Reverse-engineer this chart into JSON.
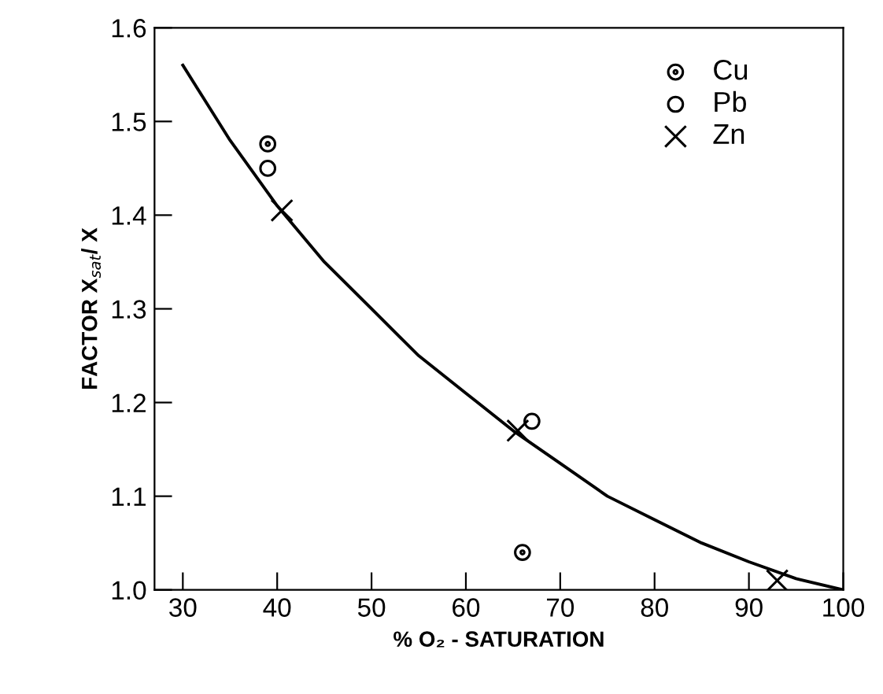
{
  "chart_data": {
    "type": "scatter",
    "xlabel": "% O₂ - SATURATION",
    "ylabel": "FACTOR X$_{sat}$/ X",
    "xlim": [
      27,
      100
    ],
    "ylim": [
      1.0,
      1.6
    ],
    "xticks": [
      30,
      40,
      50,
      60,
      70,
      80,
      90,
      100
    ],
    "yticks": [
      {
        "value": 1,
        "label": "1.0"
      },
      1.1,
      1.2,
      1.3,
      1.4,
      1.5,
      1.6
    ],
    "grid": false,
    "legend": "top right",
    "series": [
      {
        "name": "Cu",
        "color": "#000000",
        "marker": "circle_dot",
        "x": [
          39,
          66
        ],
        "values": [
          1.476,
          1.04
        ]
      },
      {
        "name": "Pb",
        "color": "#000000",
        "marker": "circle",
        "x": [
          39,
          67
        ],
        "values": [
          1.45,
          1.18
        ]
      },
      {
        "name": "Zn",
        "color": "#000000",
        "marker": "cross",
        "x": [
          40.5,
          65.5,
          93
        ],
        "values": [
          1.405,
          1.17,
          1.01
        ]
      },
      {
        "type": "line",
        "color": "#000000",
        "marker": "none",
        "line_style": "solid",
        "x": [
          30,
          35,
          40,
          45,
          50,
          55,
          60,
          65,
          70,
          75,
          80,
          85,
          90,
          95,
          100
        ],
        "values": [
          1.56,
          1.48,
          1.41,
          1.35,
          1.3,
          1.25,
          1.21,
          1.17,
          1.135,
          1.1,
          1.075,
          1.05,
          1.03,
          1.012,
          1.0
        ]
      }
    ]
  }
}
